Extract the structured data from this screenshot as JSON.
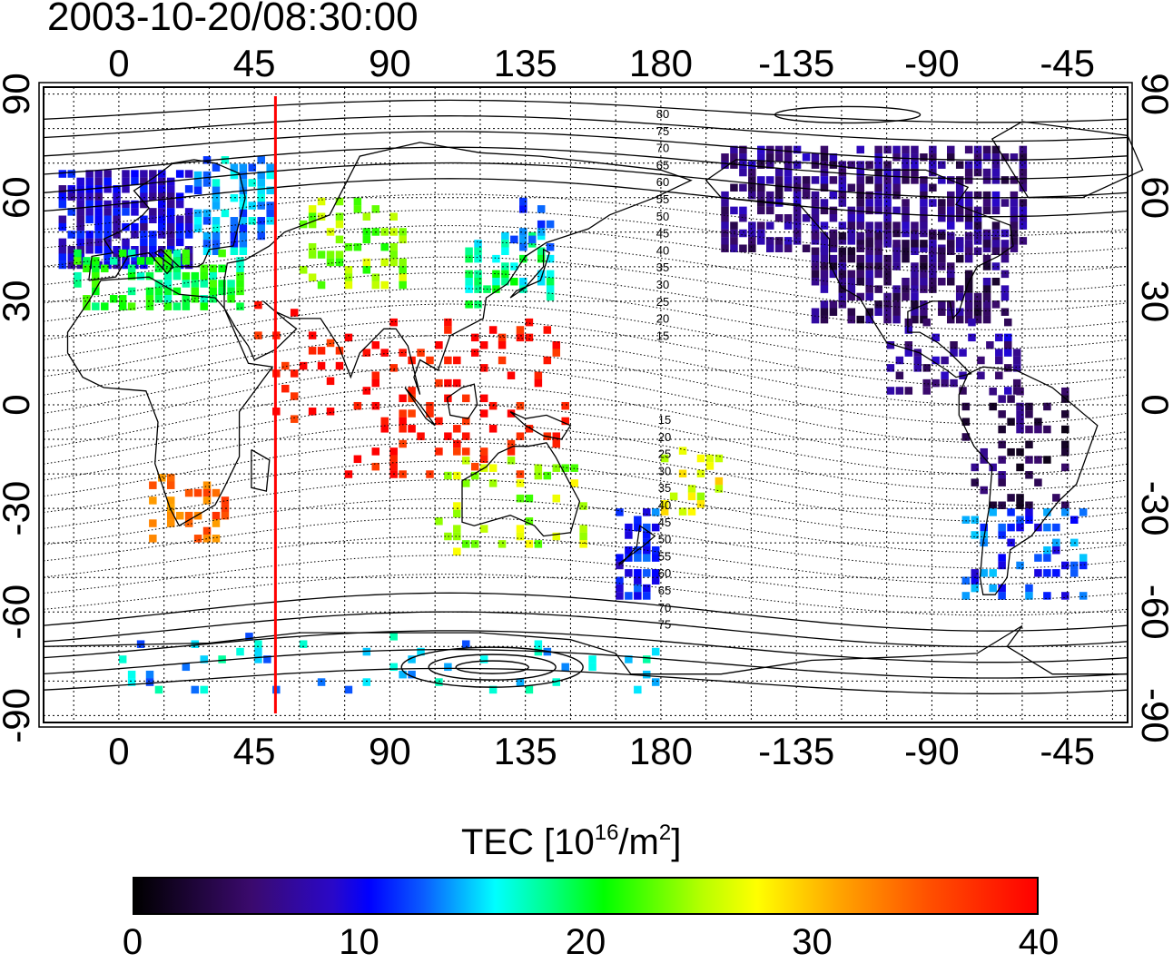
{
  "timestamp": "2003-10-20/08:30:00",
  "axes": {
    "top_lon_labels": [
      "0",
      "45",
      "90",
      "135",
      "180",
      "-135",
      "-90",
      "-45"
    ],
    "bottom_lon_labels": [
      "0",
      "45",
      "90",
      "135",
      "180",
      "-135",
      "-90",
      "-45"
    ],
    "left_lat_labels": [
      "90",
      "60",
      "30",
      "0",
      "-30",
      "-60",
      "-90"
    ],
    "right_lat_labels": [
      "90",
      "60",
      "30",
      "0",
      "-30",
      "-60",
      "-90"
    ],
    "lon_range": [
      -25,
      335
    ],
    "lat_range": [
      -92,
      92
    ]
  },
  "magnetic_latitude_labels": {
    "north": [
      "80",
      "75",
      "70",
      "65",
      "60",
      "55",
      "50",
      "45",
      "40",
      "35",
      "30",
      "25",
      "20",
      "15"
    ],
    "south": [
      "15",
      "20",
      "25",
      "30",
      "35",
      "40",
      "45",
      "50",
      "55",
      "60",
      "65",
      "70",
      "75"
    ]
  },
  "reference_meridian": {
    "lon": 52,
    "color": "#ff0000"
  },
  "colorbar": {
    "title_main": "TEC  [10",
    "title_exp1": "16",
    "title_mid": "/m",
    "title_exp2": "2",
    "title_end": "]",
    "ticks": [
      "0",
      "10",
      "20",
      "30",
      "40"
    ],
    "min": 0,
    "max": 40
  },
  "chart_data": {
    "type": "heatmap",
    "projection": "equirectangular",
    "variable": "TEC",
    "units": "10^16/m^2",
    "value_range": [
      0,
      40
    ],
    "regions": [
      {
        "lon": [
          -20,
          25
        ],
        "lat": [
          40,
          68
        ],
        "tec": 9,
        "density": 0.75
      },
      {
        "lon": [
          25,
          50
        ],
        "lat": [
          45,
          72
        ],
        "tec": 14,
        "density": 0.45
      },
      {
        "lon": [
          -15,
          40
        ],
        "lat": [
          28,
          45
        ],
        "tec": 20,
        "density": 0.55
      },
      {
        "lon": [
          60,
          95
        ],
        "lat": [
          35,
          60
        ],
        "tec": 24,
        "density": 0.35
      },
      {
        "lon": [
          115,
          145
        ],
        "lat": [
          28,
          50
        ],
        "tec": 18,
        "density": 0.45
      },
      {
        "lon": [
          130,
          145
        ],
        "lat": [
          45,
          60
        ],
        "tec": 12,
        "density": 0.35
      },
      {
        "lon": [
          75,
          150
        ],
        "lat": [
          -20,
          25
        ],
        "tec": 39,
        "density": 0.2
      },
      {
        "lon": [
          45,
          75
        ],
        "lat": [
          -5,
          30
        ],
        "tec": 39,
        "density": 0.18
      },
      {
        "lon": [
          10,
          35
        ],
        "lat": [
          -38,
          -20
        ],
        "tec": 34,
        "density": 0.35
      },
      {
        "lon": [
          105,
          155
        ],
        "lat": [
          -42,
          -15
        ],
        "tec": 25,
        "density": 0.2
      },
      {
        "lon": [
          165,
          180
        ],
        "lat": [
          -55,
          -30
        ],
        "tec": 11,
        "density": 0.5
      },
      {
        "lon": [
          180,
          200
        ],
        "lat": [
          -30,
          -10
        ],
        "tec": 27,
        "density": 0.3
      },
      {
        "lon": [
          200,
          300
        ],
        "lat": [
          45,
          75
        ],
        "tec": 6,
        "density": 0.7
      },
      {
        "lon": [
          230,
          295
        ],
        "lat": [
          25,
          50
        ],
        "tec": 5,
        "density": 0.7
      },
      {
        "lon": [
          255,
          300
        ],
        "lat": [
          5,
          25
        ],
        "tec": 7,
        "density": 0.3
      },
      {
        "lon": [
          280,
          315
        ],
        "lat": [
          -30,
          5
        ],
        "tec": 4,
        "density": 0.3
      },
      {
        "lon": [
          280,
          320
        ],
        "lat": [
          -55,
          -30
        ],
        "tec": 12,
        "density": 0.35
      },
      {
        "lon": [
          0,
          180
        ],
        "lat": [
          -82,
          -66
        ],
        "tec": 15,
        "density": 0.12
      }
    ]
  }
}
